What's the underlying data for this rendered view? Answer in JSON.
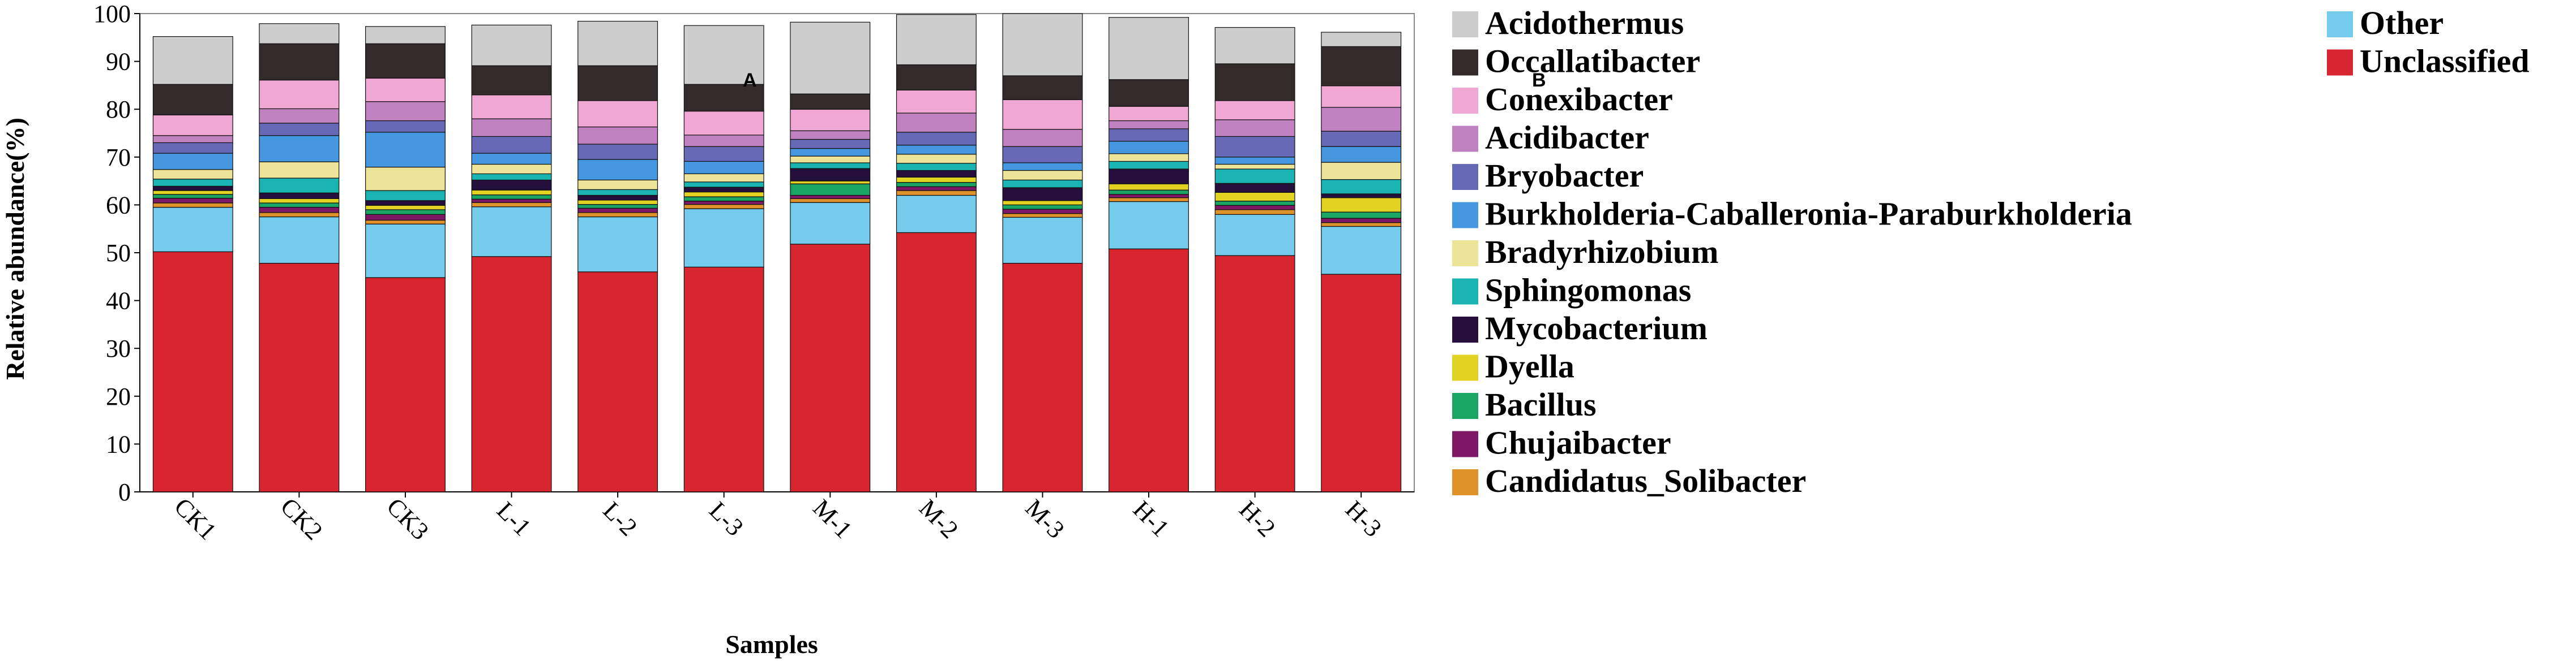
{
  "chart_data": {
    "type": "bar",
    "stacked": true,
    "xlabel": "Samples",
    "ylabel": "Relative abundance(%)",
    "ylim": [
      0,
      100
    ],
    "yticks": [
      0,
      10,
      20,
      30,
      40,
      50,
      60,
      70,
      80,
      90,
      100
    ],
    "categories": [
      "CK1",
      "CK2",
      "CK3",
      "L-1",
      "L-2",
      "L-3",
      "M-1",
      "M-2",
      "M-3",
      "H-1",
      "H-2",
      "H-3"
    ],
    "legend_position": "right",
    "series": [
      {
        "name": "Unclassified",
        "color": "#d7262f",
        "values": [
          50.2,
          47.8,
          44.8,
          49.2,
          46.0,
          47.0,
          51.8,
          54.2,
          47.8,
          50.8,
          49.4,
          45.5
        ]
      },
      {
        "name": "Other",
        "color": "#75cbec",
        "values": [
          9.3,
          9.7,
          11.2,
          10.4,
          11.5,
          12.2,
          8.7,
          7.8,
          9.6,
          9.9,
          8.6,
          10.0
        ]
      },
      {
        "name": "Candidatus_Solibacter",
        "color": "#e0922a",
        "values": [
          0.9,
          0.9,
          0.8,
          0.9,
          0.9,
          0.9,
          0.8,
          1.0,
          0.8,
          0.8,
          1.0,
          0.8
        ]
      },
      {
        "name": "Chujaibacter",
        "color": "#7e1866",
        "values": [
          1.0,
          1.1,
          1.2,
          0.7,
          0.9,
          0.7,
          0.7,
          0.8,
          0.9,
          0.7,
          0.9,
          0.9
        ]
      },
      {
        "name": "Bacillus",
        "color": "#19a463",
        "values": [
          0.8,
          0.9,
          1.0,
          0.9,
          0.8,
          0.9,
          2.4,
          0.9,
          0.9,
          0.9,
          0.9,
          1.3
        ]
      },
      {
        "name": "Dyella",
        "color": "#e2d322",
        "values": [
          0.8,
          0.9,
          0.9,
          1.0,
          0.9,
          1.0,
          0.6,
          1.1,
          0.9,
          1.3,
          1.8,
          3.0
        ]
      },
      {
        "name": "Mycobacterium",
        "color": "#25103d",
        "values": [
          0.9,
          1.2,
          1.0,
          2.1,
          1.0,
          1.0,
          2.6,
          1.4,
          2.7,
          3.1,
          1.9,
          0.8
        ]
      },
      {
        "name": "Sphingomonas",
        "color": "#19b4b2",
        "values": [
          1.5,
          3.1,
          2.1,
          1.3,
          1.2,
          1.1,
          1.2,
          1.5,
          1.6,
          1.6,
          3.0,
          3.0
        ]
      },
      {
        "name": "Bradyrhizobium",
        "color": "#ede499",
        "values": [
          2.0,
          3.4,
          4.9,
          2.0,
          2.0,
          1.7,
          1.4,
          1.9,
          2.0,
          1.6,
          1.0,
          3.6
        ]
      },
      {
        "name": "Burkholderia-Caballeronia-Paraburkholderia",
        "color": "#4598df",
        "values": [
          3.4,
          5.5,
          7.3,
          2.3,
          4.3,
          2.6,
          1.6,
          1.9,
          1.6,
          2.6,
          1.5,
          3.3
        ]
      },
      {
        "name": "Bryobacter",
        "color": "#6769b7",
        "values": [
          2.2,
          2.6,
          2.4,
          3.5,
          3.2,
          3.1,
          1.9,
          2.7,
          3.4,
          2.6,
          4.3,
          3.2
        ]
      },
      {
        "name": "Acidibacter",
        "color": "#c081c1",
        "values": [
          1.5,
          3.0,
          4.0,
          3.7,
          3.6,
          2.4,
          1.8,
          4.0,
          3.6,
          1.7,
          3.5,
          5.0
        ]
      },
      {
        "name": "Conexibacter",
        "color": "#f1a7d3",
        "values": [
          4.3,
          6.0,
          4.9,
          5.0,
          5.5,
          5.0,
          4.5,
          4.8,
          6.2,
          3.0,
          4.0,
          4.5
        ]
      },
      {
        "name": "Occallatibacter",
        "color": "#332b2b",
        "values": [
          6.4,
          7.6,
          7.2,
          6.1,
          7.3,
          5.6,
          3.2,
          5.3,
          5.0,
          5.6,
          7.7,
          8.2
        ]
      },
      {
        "name": "Acidothermus",
        "color": "#cdcdcd",
        "values": [
          10.0,
          4.2,
          3.6,
          8.5,
          9.3,
          12.3,
          15.0,
          10.5,
          13.0,
          13.0,
          7.6,
          3.0
        ]
      }
    ],
    "legend_order": [
      "Acidothermus",
      "Occallatibacter",
      "Conexibacter",
      "Acidibacter",
      "Bryobacter",
      "Burkholderia-Caballeronia-Paraburkholderia",
      "Bradyrhizobium",
      "Sphingomonas",
      "Mycobacterium",
      "Dyella",
      "Bacillus",
      "Chujaibacter",
      "Candidatus_Solibacter",
      "Other",
      "Unclassified"
    ],
    "annotations": [
      "A",
      "B"
    ]
  }
}
